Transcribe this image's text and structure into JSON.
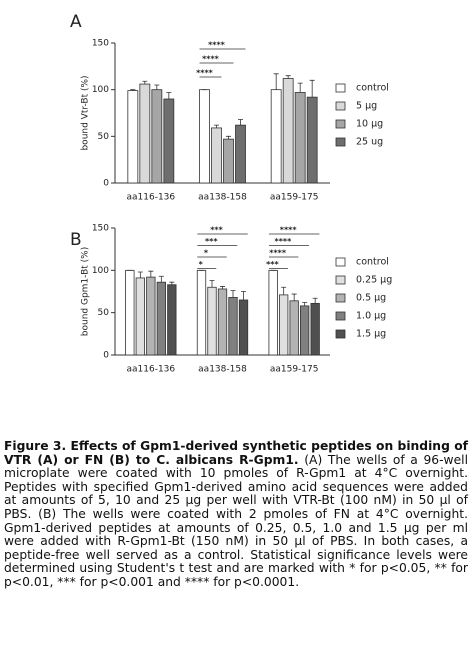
{
  "chart_data": [
    {
      "type": "bar",
      "panel": "A",
      "y_label": "bound Vtr-Bt (%)",
      "categories": [
        "aa116-136",
        "aa138-158",
        "aa159-175"
      ],
      "ylim": [
        0,
        150
      ],
      "yticks": [
        0,
        50,
        100,
        150
      ],
      "series": [
        {
          "name": "control",
          "color": "#ffffff",
          "values": [
            99,
            100,
            100
          ],
          "errors": [
            1,
            0,
            17
          ]
        },
        {
          "name": "5 μg",
          "color": "#d9d9d9",
          "values": [
            106,
            59,
            112
          ],
          "errors": [
            3,
            3,
            3
          ]
        },
        {
          "name": "10 μg",
          "color": "#a6a6a6",
          "values": [
            100,
            47,
            97
          ],
          "errors": [
            5,
            3,
            10
          ]
        },
        {
          "name": "25 ug",
          "color": "#6e6e6e",
          "values": [
            90,
            62,
            92
          ],
          "errors": [
            7,
            6,
            18
          ]
        }
      ],
      "annotations": [
        {
          "label": "****",
          "category": 1,
          "series": [
            0,
            3
          ]
        },
        {
          "label": "****",
          "category": 1,
          "series": [
            0,
            2
          ]
        },
        {
          "label": "****",
          "category": 1,
          "series": [
            0,
            1
          ]
        }
      ]
    },
    {
      "type": "bar",
      "panel": "B",
      "y_label": "bound Gpm1-Bt (%)",
      "categories": [
        "aa116-136",
        "aa138-158",
        "aa159-175"
      ],
      "ylim": [
        0,
        150
      ],
      "yticks": [
        0,
        50,
        100,
        150
      ],
      "series": [
        {
          "name": "control",
          "color": "#ffffff",
          "values": [
            100,
            100,
            100
          ],
          "errors": [
            0,
            0,
            0
          ]
        },
        {
          "name": "0.25 μg",
          "color": "#e0e0e0",
          "values": [
            91,
            80,
            71
          ],
          "errors": [
            7,
            8,
            9
          ]
        },
        {
          "name": "0.5 μg",
          "color": "#b3b3b3",
          "values": [
            92,
            78,
            64
          ],
          "errors": [
            7,
            3,
            8
          ]
        },
        {
          "name": "1.0 μg",
          "color": "#808080",
          "values": [
            86,
            68,
            58
          ],
          "errors": [
            7,
            8,
            4
          ]
        },
        {
          "name": "1.5 μg",
          "color": "#505050",
          "values": [
            83,
            65,
            61
          ],
          "errors": [
            3,
            10,
            6
          ]
        }
      ],
      "annotations": [
        {
          "label": "***",
          "category": 1,
          "series": [
            0,
            4
          ]
        },
        {
          "label": "***",
          "category": 1,
          "series": [
            0,
            3
          ]
        },
        {
          "label": "*",
          "category": 1,
          "series": [
            0,
            2
          ]
        },
        {
          "label": "*",
          "category": 1,
          "series": [
            0,
            1
          ]
        },
        {
          "label": "****",
          "category": 2,
          "series": [
            0,
            4
          ]
        },
        {
          "label": "****",
          "category": 2,
          "series": [
            0,
            3
          ]
        },
        {
          "label": "****",
          "category": 2,
          "series": [
            0,
            2
          ]
        },
        {
          "label": "***",
          "category": 2,
          "series": [
            0,
            1
          ]
        }
      ]
    }
  ],
  "caption": {
    "title": "Figure 3. Effects of Gpm1-derived synthetic peptides on binding of VTR (A) or FN (B) to C. albicans R-Gpm1.",
    "body": "(A) The wells of a 96-well microplate were coated with 10 pmoles of R-Gpm1 at 4°C overnight. Peptides with specified Gpm1-derived amino acid sequences were added at amounts of 5, 10 and 25 μg per well with VTR-Bt (100 nM) in 50 μl of PBS. (B) The wells were coated with 2 pmoles of FN at 4°C overnight. Gpm1-derived peptides at amounts of 0.25, 0.5, 1.0 and 1.5 μg per ml were added with R-Gpm1-Bt (150 nM) in 50 μl of PBS. In both cases, a peptide-free well served as a control. Statistical significance levels were determined using Student's t test and are marked with * for p<0.05, ** for p<0.01, *** for p<0.001 and **** for p<0.0001."
  }
}
